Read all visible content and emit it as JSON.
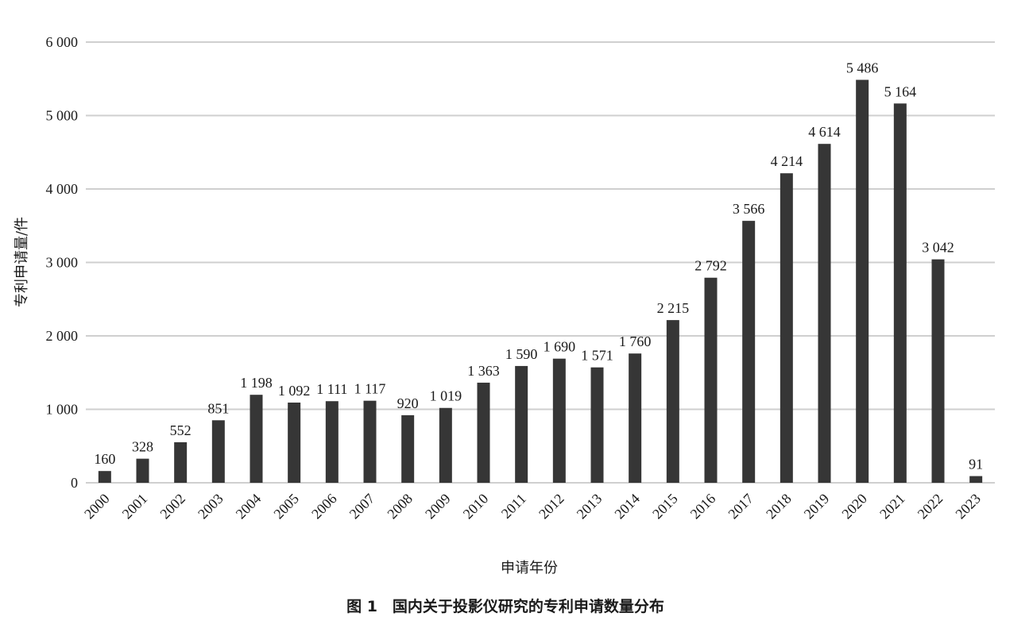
{
  "chart_data": {
    "type": "bar",
    "title": "图 1　国内关于投影仪研究的专利申请数量分布",
    "xlabel": "申请年份",
    "ylabel": "专利申请量/件",
    "categories": [
      "2000",
      "2001",
      "2002",
      "2003",
      "2004",
      "2005",
      "2006",
      "2007",
      "2008",
      "2009",
      "2010",
      "2011",
      "2012",
      "2013",
      "2014",
      "2015",
      "2016",
      "2017",
      "2018",
      "2019",
      "2020",
      "2021",
      "2022",
      "2023"
    ],
    "values": [
      160,
      328,
      552,
      851,
      1198,
      1092,
      1111,
      1117,
      920,
      1019,
      1363,
      1590,
      1690,
      1571,
      1760,
      2215,
      2792,
      3566,
      4214,
      4614,
      5486,
      5164,
      3042,
      91
    ],
    "value_labels": [
      "160",
      "328",
      "552",
      "851",
      "1 198",
      "1 092",
      "1 111",
      "1 117",
      "920",
      "1 019",
      "1 363",
      "1 590",
      "1 690",
      "1 571",
      "1 760",
      "2 215",
      "2 792",
      "3 566",
      "4 214",
      "4 614",
      "5 486",
      "5 164",
      "3 042",
      "91"
    ],
    "ylim": [
      0,
      6000
    ],
    "yticks": [
      0,
      1000,
      2000,
      3000,
      4000,
      5000,
      6000
    ],
    "ytick_labels": [
      "0",
      "1 000",
      "2 000",
      "3 000",
      "4 000",
      "5 000",
      "6 000"
    ],
    "grid": true,
    "colors": {
      "bar": "#363636",
      "grid": "#cfcfcf",
      "text": "#1a1a1a"
    }
  }
}
